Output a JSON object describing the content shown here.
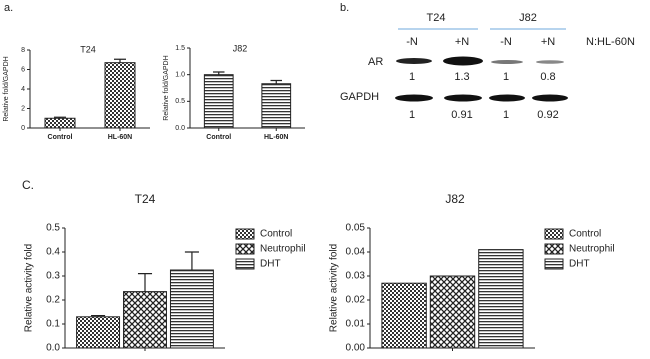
{
  "panel_labels": [
    "a.",
    "b.",
    "C."
  ],
  "chart_data": [
    {
      "type": "bar",
      "title": "T24",
      "y_label": "Relative fold/GAPDH",
      "categories": [
        "Control",
        "HL-60N"
      ],
      "values": [
        1.0,
        6.7
      ],
      "errors": [
        0.1,
        0.35
      ],
      "pattern": "checker",
      "color": "#222222",
      "ylim": [
        0,
        8
      ],
      "yticks": [
        0,
        2,
        4,
        6,
        8
      ]
    },
    {
      "type": "bar",
      "title": "J82",
      "y_label": "Relative fold/GAPDH",
      "categories": [
        "Control",
        "HL-60N"
      ],
      "values": [
        1.0,
        0.83
      ],
      "errors": [
        0.05,
        0.06
      ],
      "pattern": "hlines",
      "color": "#222222",
      "ylim": [
        0,
        1.5
      ],
      "yticks": [
        {
          "value": 0,
          "label": "0.0"
        },
        {
          "value": 0.5,
          "label": "0.5"
        },
        {
          "value": 1,
          "label": "1.0"
        },
        {
          "value": 1.5,
          "label": "1.5"
        }
      ]
    },
    {
      "type": "bar",
      "title": "T24",
      "y_label": "Relative activity fold",
      "categories": [
        null
      ],
      "series": [
        {
          "name": "Control",
          "color": "#222222",
          "pattern": "checker",
          "values": [
            0.13
          ],
          "errors": [
            0.005
          ]
        },
        {
          "name": "Neutrophil",
          "color": "#222222",
          "pattern": "cross",
          "values": [
            0.235
          ],
          "errors": [
            0.075
          ]
        },
        {
          "name": "DHT",
          "color": "#222222",
          "pattern": "hlines",
          "values": [
            0.325
          ],
          "errors": [
            0.075
          ]
        }
      ],
      "ylim": [
        0,
        0.5
      ],
      "yticks": [
        {
          "value": 0,
          "label": "0.0"
        },
        0.1,
        0.2,
        0.3,
        0.4,
        0.5
      ]
    },
    {
      "type": "bar",
      "title": "J82",
      "y_label": "Relative activity fold",
      "categories": [
        null
      ],
      "series": [
        {
          "name": "Control",
          "color": "#222222",
          "pattern": "checker",
          "values": [
            0.027
          ]
        },
        {
          "name": "Neutrophil",
          "color": "#222222",
          "pattern": "cross",
          "values": [
            0.03
          ]
        },
        {
          "name": "DHT",
          "color": "#222222",
          "pattern": "hlines",
          "values": [
            0.041
          ]
        }
      ],
      "ylim": [
        0,
        0.05
      ],
      "yticks": [
        {
          "value": 0,
          "label": "0.00"
        },
        0.01,
        0.02,
        0.03,
        0.04,
        0.05
      ]
    }
  ],
  "blot": {
    "groups": [
      "T24",
      "J82"
    ],
    "lanes": [
      "-N",
      "+N",
      "-N",
      "+N"
    ],
    "note": "N:HL-60N",
    "rows": [
      {
        "label": "AR",
        "values": [
          1,
          1.3,
          1,
          0.8
        ]
      },
      {
        "label": "GAPDH",
        "values": [
          1,
          0.91,
          1,
          0.92
        ]
      }
    ]
  }
}
